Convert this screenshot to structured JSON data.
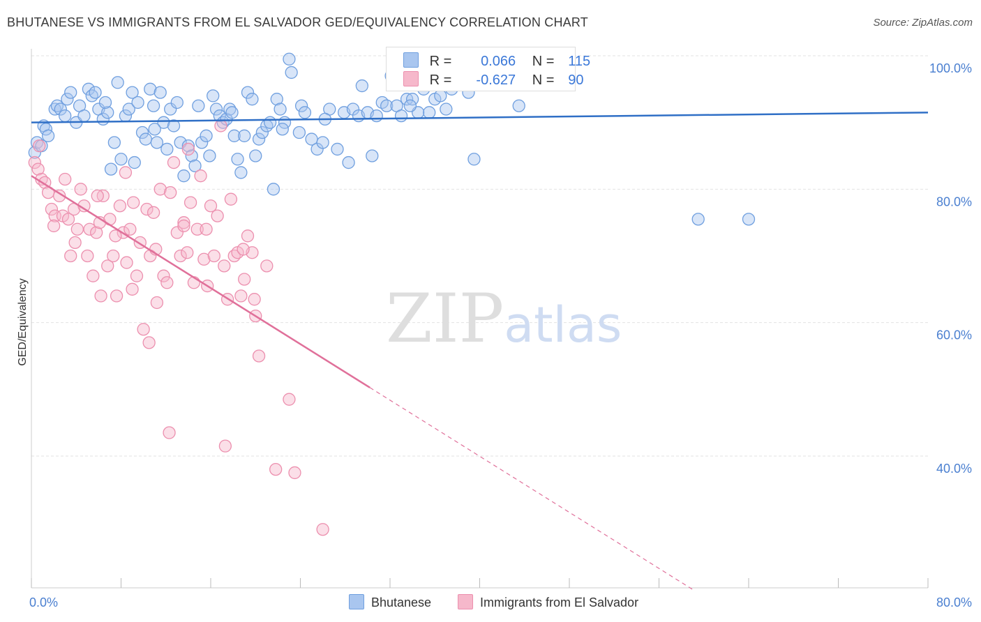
{
  "header": {
    "title": "BHUTANESE VS IMMIGRANTS FROM EL SALVADOR GED/EQUIVALENCY CORRELATION CHART",
    "source": "Source: ZipAtlas.com"
  },
  "legend": {
    "rows": [
      {
        "r_label": "R =",
        "r_value": "0.066",
        "n_label": "N =",
        "n_value": "115"
      },
      {
        "r_label": "R =",
        "r_value": "-0.627",
        "n_label": "N =",
        "n_value": "90"
      }
    ]
  },
  "bottom_legend": {
    "series1": "Bhutanese",
    "series2": "Immigrants from El Salvador"
  },
  "colors": {
    "blue_fill": "#a9c6ef",
    "blue_stroke": "#6f9fdf",
    "blue_line": "#2f6fc6",
    "pink_fill": "#f6b8cb",
    "pink_stroke": "#ec8fae",
    "pink_line": "#e0709a",
    "grid": "#e2e2e2",
    "tick_label": "#4a7fd0"
  },
  "chart_data": {
    "type": "scatter",
    "title": "BHUTANESE VS IMMIGRANTS FROM EL SALVADOR GED/EQUIVALENCY CORRELATION CHART",
    "ylabel": "GED/Equivalency",
    "xlim": [
      0,
      80
    ],
    "ylim": [
      20,
      101
    ],
    "x_tick_labels": [
      {
        "value": 0,
        "label": "0.0%"
      },
      {
        "value": 80,
        "label": "80.0%"
      }
    ],
    "y_tick_labels": [
      {
        "value": 100,
        "label": "100.0%"
      },
      {
        "value": 80,
        "label": "80.0%"
      },
      {
        "value": 60,
        "label": "60.0%"
      },
      {
        "value": 40,
        "label": "40.0%"
      }
    ],
    "watermark": {
      "bold": "ZIP",
      "light": "atlas"
    },
    "series": [
      {
        "name": "Bhutanese",
        "trend": {
          "x": [
            0,
            80
          ],
          "y": [
            90.0,
            91.5
          ],
          "dashed_from": null
        },
        "points": [
          [
            0.3,
            85.5
          ],
          [
            0.5,
            87.0
          ],
          [
            0.9,
            86.5
          ],
          [
            1.1,
            89.5
          ],
          [
            1.3,
            89.0
          ],
          [
            2.1,
            92.0
          ],
          [
            2.3,
            92.5
          ],
          [
            2.6,
            92.0
          ],
          [
            3.2,
            93.5
          ],
          [
            3.5,
            94.5
          ],
          [
            4.0,
            90.0
          ],
          [
            4.3,
            92.5
          ],
          [
            4.7,
            91.0
          ],
          [
            5.1,
            95.0
          ],
          [
            5.4,
            94.0
          ],
          [
            5.7,
            94.5
          ],
          [
            6.0,
            92.0
          ],
          [
            6.4,
            90.5
          ],
          [
            6.8,
            91.5
          ],
          [
            7.1,
            83.0
          ],
          [
            7.4,
            87.0
          ],
          [
            7.7,
            96.0
          ],
          [
            8.0,
            84.5
          ],
          [
            8.4,
            91.0
          ],
          [
            8.7,
            92.0
          ],
          [
            9.0,
            94.5
          ],
          [
            9.2,
            84.0
          ],
          [
            9.5,
            93.0
          ],
          [
            9.9,
            88.5
          ],
          [
            10.2,
            87.5
          ],
          [
            10.6,
            95.0
          ],
          [
            10.9,
            92.5
          ],
          [
            11.2,
            87.0
          ],
          [
            11.5,
            94.5
          ],
          [
            11.8,
            90.0
          ],
          [
            12.1,
            86.0
          ],
          [
            12.4,
            92.0
          ],
          [
            12.7,
            89.5
          ],
          [
            13.0,
            93.0
          ],
          [
            13.3,
            87.0
          ],
          [
            13.6,
            82.0
          ],
          [
            14.0,
            86.5
          ],
          [
            14.3,
            85.0
          ],
          [
            14.6,
            83.5
          ],
          [
            14.9,
            92.5
          ],
          [
            15.2,
            87.0
          ],
          [
            15.6,
            88.0
          ],
          [
            15.9,
            85.0
          ],
          [
            16.2,
            94.0
          ],
          [
            16.5,
            92.0
          ],
          [
            16.8,
            91.0
          ],
          [
            17.1,
            90.0
          ],
          [
            17.4,
            90.5
          ],
          [
            17.7,
            92.0
          ],
          [
            18.1,
            88.0
          ],
          [
            18.4,
            84.5
          ],
          [
            18.7,
            82.5
          ],
          [
            19.0,
            88.0
          ],
          [
            19.3,
            94.5
          ],
          [
            19.7,
            93.5
          ],
          [
            20.0,
            85.0
          ],
          [
            20.3,
            87.5
          ],
          [
            20.6,
            88.5
          ],
          [
            21.0,
            89.5
          ],
          [
            21.3,
            90.0
          ],
          [
            21.6,
            80.0
          ],
          [
            21.9,
            93.5
          ],
          [
            22.2,
            92.0
          ],
          [
            22.6,
            90.0
          ],
          [
            23.0,
            99.5
          ],
          [
            23.2,
            97.5
          ],
          [
            23.9,
            88.5
          ],
          [
            24.1,
            92.5
          ],
          [
            24.4,
            91.5
          ],
          [
            25.0,
            87.5
          ],
          [
            25.5,
            86.0
          ],
          [
            26.0,
            87.0
          ],
          [
            26.6,
            92.0
          ],
          [
            27.3,
            86.0
          ],
          [
            27.9,
            91.5
          ],
          [
            28.3,
            84.0
          ],
          [
            28.7,
            92.0
          ],
          [
            29.2,
            91.0
          ],
          [
            29.5,
            95.5
          ],
          [
            30.0,
            91.5
          ],
          [
            30.4,
            85.0
          ],
          [
            30.8,
            91.0
          ],
          [
            31.3,
            93.0
          ],
          [
            31.7,
            92.5
          ],
          [
            32.1,
            97.0
          ],
          [
            32.6,
            92.5
          ],
          [
            33.0,
            91.0
          ],
          [
            33.5,
            93.5
          ],
          [
            34.0,
            93.5
          ],
          [
            34.5,
            91.5
          ],
          [
            35.0,
            95.0
          ],
          [
            35.5,
            91.5
          ],
          [
            36.0,
            93.5
          ],
          [
            36.5,
            94.0
          ],
          [
            37.5,
            95.0
          ],
          [
            38.0,
            97.0
          ],
          [
            39.0,
            94.5
          ],
          [
            39.5,
            84.5
          ],
          [
            43.5,
            92.5
          ],
          [
            59.5,
            75.5
          ],
          [
            64.0,
            75.5
          ],
          [
            1.5,
            88.0
          ],
          [
            3.0,
            91.0
          ],
          [
            6.6,
            93.0
          ],
          [
            11.0,
            89.0
          ],
          [
            17.9,
            91.5
          ],
          [
            22.4,
            89.0
          ],
          [
            26.2,
            90.5
          ],
          [
            33.8,
            92.5
          ],
          [
            37.0,
            92.0
          ]
        ]
      },
      {
        "name": "Immigrants from El Salvador",
        "trend": {
          "x": [
            0,
            59
          ],
          "y": [
            82.0,
            20.0
          ],
          "solid_until": 30.2
        },
        "points": [
          [
            0.3,
            84.0
          ],
          [
            0.6,
            83.0
          ],
          [
            0.9,
            81.5
          ],
          [
            1.2,
            81.0
          ],
          [
            1.5,
            79.5
          ],
          [
            1.8,
            77.0
          ],
          [
            2.1,
            76.0
          ],
          [
            2.5,
            79.0
          ],
          [
            2.8,
            76.0
          ],
          [
            3.0,
            81.5
          ],
          [
            3.3,
            75.5
          ],
          [
            3.5,
            70.0
          ],
          [
            3.8,
            77.0
          ],
          [
            4.1,
            74.0
          ],
          [
            4.4,
            80.0
          ],
          [
            4.7,
            77.5
          ],
          [
            5.0,
            70.0
          ],
          [
            5.2,
            74.0
          ],
          [
            5.5,
            67.0
          ],
          [
            5.8,
            73.5
          ],
          [
            6.1,
            75.0
          ],
          [
            6.4,
            79.0
          ],
          [
            6.8,
            68.5
          ],
          [
            7.0,
            75.5
          ],
          [
            7.3,
            70.0
          ],
          [
            7.6,
            64.0
          ],
          [
            7.9,
            77.5
          ],
          [
            8.2,
            73.5
          ],
          [
            8.5,
            69.0
          ],
          [
            8.8,
            74.0
          ],
          [
            9.1,
            78.0
          ],
          [
            9.4,
            67.0
          ],
          [
            9.7,
            72.0
          ],
          [
            10.0,
            59.0
          ],
          [
            10.3,
            77.0
          ],
          [
            10.6,
            70.0
          ],
          [
            10.9,
            76.5
          ],
          [
            11.2,
            63.0
          ],
          [
            11.5,
            80.0
          ],
          [
            11.8,
            67.0
          ],
          [
            12.1,
            66.0
          ],
          [
            12.4,
            79.5
          ],
          [
            12.7,
            84.0
          ],
          [
            13.0,
            73.5
          ],
          [
            13.3,
            70.0
          ],
          [
            13.6,
            75.0
          ],
          [
            13.9,
            70.5
          ],
          [
            14.2,
            78.0
          ],
          [
            14.5,
            66.0
          ],
          [
            14.8,
            74.0
          ],
          [
            15.1,
            82.0
          ],
          [
            15.4,
            69.5
          ],
          [
            15.7,
            65.5
          ],
          [
            16.0,
            77.5
          ],
          [
            16.3,
            70.0
          ],
          [
            16.6,
            76.0
          ],
          [
            16.9,
            89.5
          ],
          [
            17.2,
            68.5
          ],
          [
            17.5,
            63.5
          ],
          [
            17.8,
            78.5
          ],
          [
            18.1,
            70.0
          ],
          [
            18.4,
            70.5
          ],
          [
            18.7,
            64.0
          ],
          [
            19.0,
            66.5
          ],
          [
            19.3,
            73.0
          ],
          [
            19.7,
            70.5
          ],
          [
            20.0,
            61.0
          ],
          [
            20.3,
            55.0
          ],
          [
            21.0,
            68.5
          ],
          [
            8.4,
            82.5
          ],
          [
            9.0,
            65.0
          ],
          [
            10.5,
            57.0
          ],
          [
            12.3,
            43.5
          ],
          [
            17.3,
            41.5
          ],
          [
            21.8,
            38.0
          ],
          [
            23.0,
            48.5
          ],
          [
            23.5,
            37.5
          ],
          [
            26.0,
            29.0
          ],
          [
            2.0,
            74.5
          ],
          [
            3.9,
            72.0
          ],
          [
            6.2,
            64.0
          ],
          [
            7.5,
            73.0
          ],
          [
            11.1,
            71.0
          ],
          [
            13.6,
            74.5
          ],
          [
            15.6,
            74.0
          ],
          [
            18.9,
            71.0
          ],
          [
            19.9,
            63.5
          ],
          [
            5.9,
            79.0
          ],
          [
            0.7,
            86.5
          ],
          [
            14.0,
            86.0
          ]
        ]
      }
    ]
  }
}
